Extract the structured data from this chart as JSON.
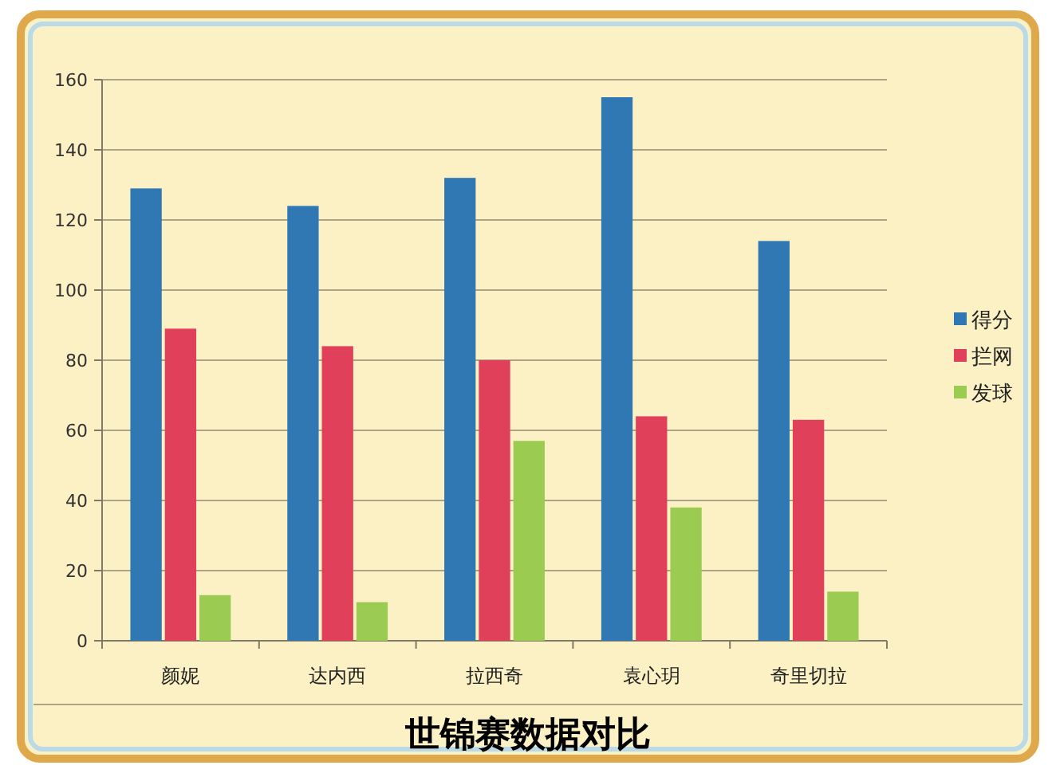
{
  "chart_data": {
    "type": "bar",
    "title": "世锦赛数据对比",
    "categories": [
      "颜妮",
      "达内西",
      "拉西奇",
      "袁心玥",
      "奇里切拉"
    ],
    "series": [
      {
        "name": "得分",
        "color": "#2f78b4",
        "values": [
          129,
          124,
          132,
          155,
          114
        ]
      },
      {
        "name": "拦网",
        "color": "#e0405a",
        "values": [
          89,
          84,
          80,
          64,
          63
        ]
      },
      {
        "name": "发球",
        "color": "#9ccb52",
        "values": [
          13,
          11,
          57,
          38,
          14
        ]
      }
    ],
    "ylim": [
      0,
      160
    ],
    "yticks": [
      0,
      20,
      40,
      60,
      80,
      100,
      120,
      140,
      160
    ],
    "grid": "y",
    "legend": "right"
  }
}
